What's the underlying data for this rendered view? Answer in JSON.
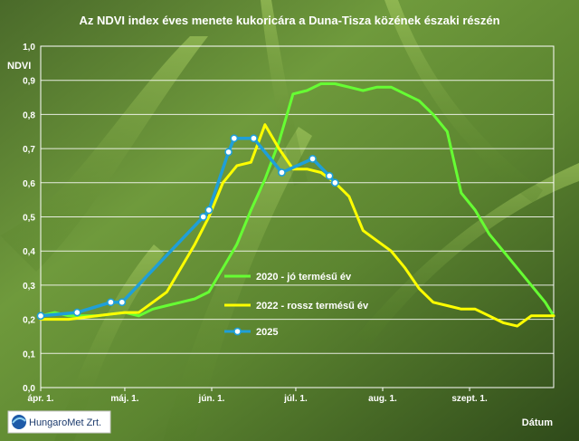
{
  "chart_data": {
    "type": "line",
    "title": "Az NDVI index éves menete kukoricára a Duna-Tisza közének északi részén",
    "xlabel": "Dátum",
    "ylabel": "NDVI",
    "ylim": [
      0,
      1
    ],
    "y_ticks": [
      "0,0",
      "0,1",
      "0,2",
      "0,3",
      "0,4",
      "0,5",
      "0,6",
      "0,7",
      "0,8",
      "0,9",
      "1,0"
    ],
    "x_ticks": [
      {
        "day": 0,
        "label": "ápr. 1."
      },
      {
        "day": 30,
        "label": "máj. 1."
      },
      {
        "day": 61,
        "label": "jún. 1."
      },
      {
        "day": 91,
        "label": "júl. 1."
      },
      {
        "day": 122,
        "label": "aug. 1."
      },
      {
        "day": 153,
        "label": "szept. 1."
      }
    ],
    "x_range_days": [
      0,
      183
    ],
    "grid": true,
    "legend_position": "center-right",
    "series": [
      {
        "name": "2020 - jó termésű év",
        "color": "#66ff33",
        "markers": false,
        "points": [
          [
            0,
            0.21
          ],
          [
            5,
            0.22
          ],
          [
            10,
            0.21
          ],
          [
            20,
            0.21
          ],
          [
            30,
            0.22
          ],
          [
            35,
            0.21
          ],
          [
            40,
            0.23
          ],
          [
            45,
            0.24
          ],
          [
            50,
            0.25
          ],
          [
            55,
            0.26
          ],
          [
            60,
            0.28
          ],
          [
            65,
            0.35
          ],
          [
            70,
            0.42
          ],
          [
            75,
            0.52
          ],
          [
            80,
            0.61
          ],
          [
            85,
            0.72
          ],
          [
            90,
            0.86
          ],
          [
            95,
            0.87
          ],
          [
            100,
            0.89
          ],
          [
            105,
            0.89
          ],
          [
            110,
            0.88
          ],
          [
            115,
            0.87
          ],
          [
            120,
            0.88
          ],
          [
            125,
            0.88
          ],
          [
            130,
            0.86
          ],
          [
            135,
            0.84
          ],
          [
            140,
            0.8
          ],
          [
            145,
            0.75
          ],
          [
            150,
            0.57
          ],
          [
            155,
            0.52
          ],
          [
            160,
            0.45
          ],
          [
            165,
            0.4
          ],
          [
            170,
            0.35
          ],
          [
            175,
            0.3
          ],
          [
            180,
            0.25
          ],
          [
            183,
            0.21
          ]
        ]
      },
      {
        "name": "2022 - rossz termésű év",
        "color": "#ffff00",
        "markers": false,
        "points": [
          [
            0,
            0.2
          ],
          [
            5,
            0.2
          ],
          [
            10,
            0.2
          ],
          [
            20,
            0.21
          ],
          [
            30,
            0.22
          ],
          [
            35,
            0.22
          ],
          [
            40,
            0.25
          ],
          [
            45,
            0.28
          ],
          [
            50,
            0.35
          ],
          [
            55,
            0.42
          ],
          [
            60,
            0.5
          ],
          [
            65,
            0.6
          ],
          [
            70,
            0.65
          ],
          [
            75,
            0.66
          ],
          [
            80,
            0.77
          ],
          [
            85,
            0.7
          ],
          [
            90,
            0.64
          ],
          [
            95,
            0.64
          ],
          [
            100,
            0.63
          ],
          [
            105,
            0.6
          ],
          [
            110,
            0.56
          ],
          [
            115,
            0.46
          ],
          [
            120,
            0.43
          ],
          [
            125,
            0.4
          ],
          [
            130,
            0.35
          ],
          [
            135,
            0.29
          ],
          [
            140,
            0.25
          ],
          [
            145,
            0.24
          ],
          [
            150,
            0.23
          ],
          [
            155,
            0.23
          ],
          [
            160,
            0.21
          ],
          [
            165,
            0.19
          ],
          [
            170,
            0.18
          ],
          [
            175,
            0.21
          ],
          [
            183,
            0.21
          ]
        ]
      },
      {
        "name": "2025",
        "color": "#1f9fd8",
        "markers": true,
        "points": [
          [
            0,
            0.21
          ],
          [
            13,
            0.22
          ],
          [
            25,
            0.25
          ],
          [
            29,
            0.25
          ],
          [
            58,
            0.5
          ],
          [
            60,
            0.52
          ],
          [
            67,
            0.69
          ],
          [
            69,
            0.73
          ],
          [
            76,
            0.73
          ],
          [
            86,
            0.63
          ],
          [
            97,
            0.67
          ],
          [
            103,
            0.62
          ],
          [
            105,
            0.6
          ]
        ]
      }
    ]
  },
  "logo": {
    "text": "HungaroMet Zrt."
  }
}
